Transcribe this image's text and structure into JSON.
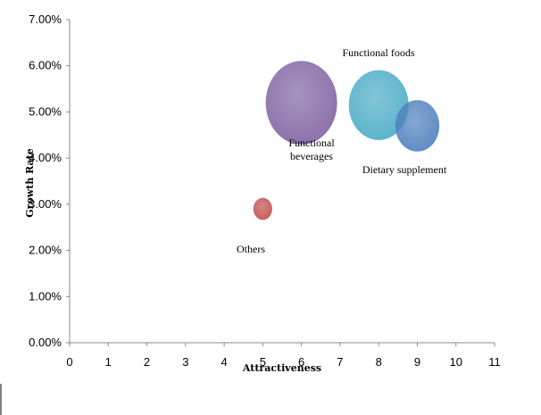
{
  "chart_data": {
    "type": "scatter",
    "subtype": "bubble",
    "title": "",
    "xlabel": "Attractiveness",
    "ylabel": "Growth Rate",
    "xlim": [
      0,
      11
    ],
    "ylim": [
      0,
      0.07
    ],
    "xticks": [
      "0",
      "1",
      "2",
      "3",
      "4",
      "5",
      "6",
      "7",
      "8",
      "9",
      "10",
      "11"
    ],
    "yticks": [
      "0.00%",
      "1.00%",
      "2.00%",
      "3.00%",
      "4.00%",
      "5.00%",
      "6.00%",
      "7.00%"
    ],
    "grid": false,
    "legend": "none",
    "series": [
      {
        "name": "Functional beverages",
        "x": 6,
        "y": 0.052,
        "size": 100,
        "color": "#8064a2",
        "label_lines": [
          "Functional",
          "beverages"
        ]
      },
      {
        "name": "Functional foods",
        "x": 8,
        "y": 0.0515,
        "size": 70,
        "color": "#4bacc6",
        "label_lines": [
          "Functional foods"
        ]
      },
      {
        "name": "Dietary supplement",
        "x": 9,
        "y": 0.047,
        "size": 38,
        "color": "#4f81bd",
        "label_lines": [
          "Dietary supplement"
        ]
      },
      {
        "name": "Others",
        "x": 5,
        "y": 0.029,
        "size": 7,
        "color": "#c0504d",
        "label_lines": [
          "Others"
        ]
      }
    ]
  }
}
